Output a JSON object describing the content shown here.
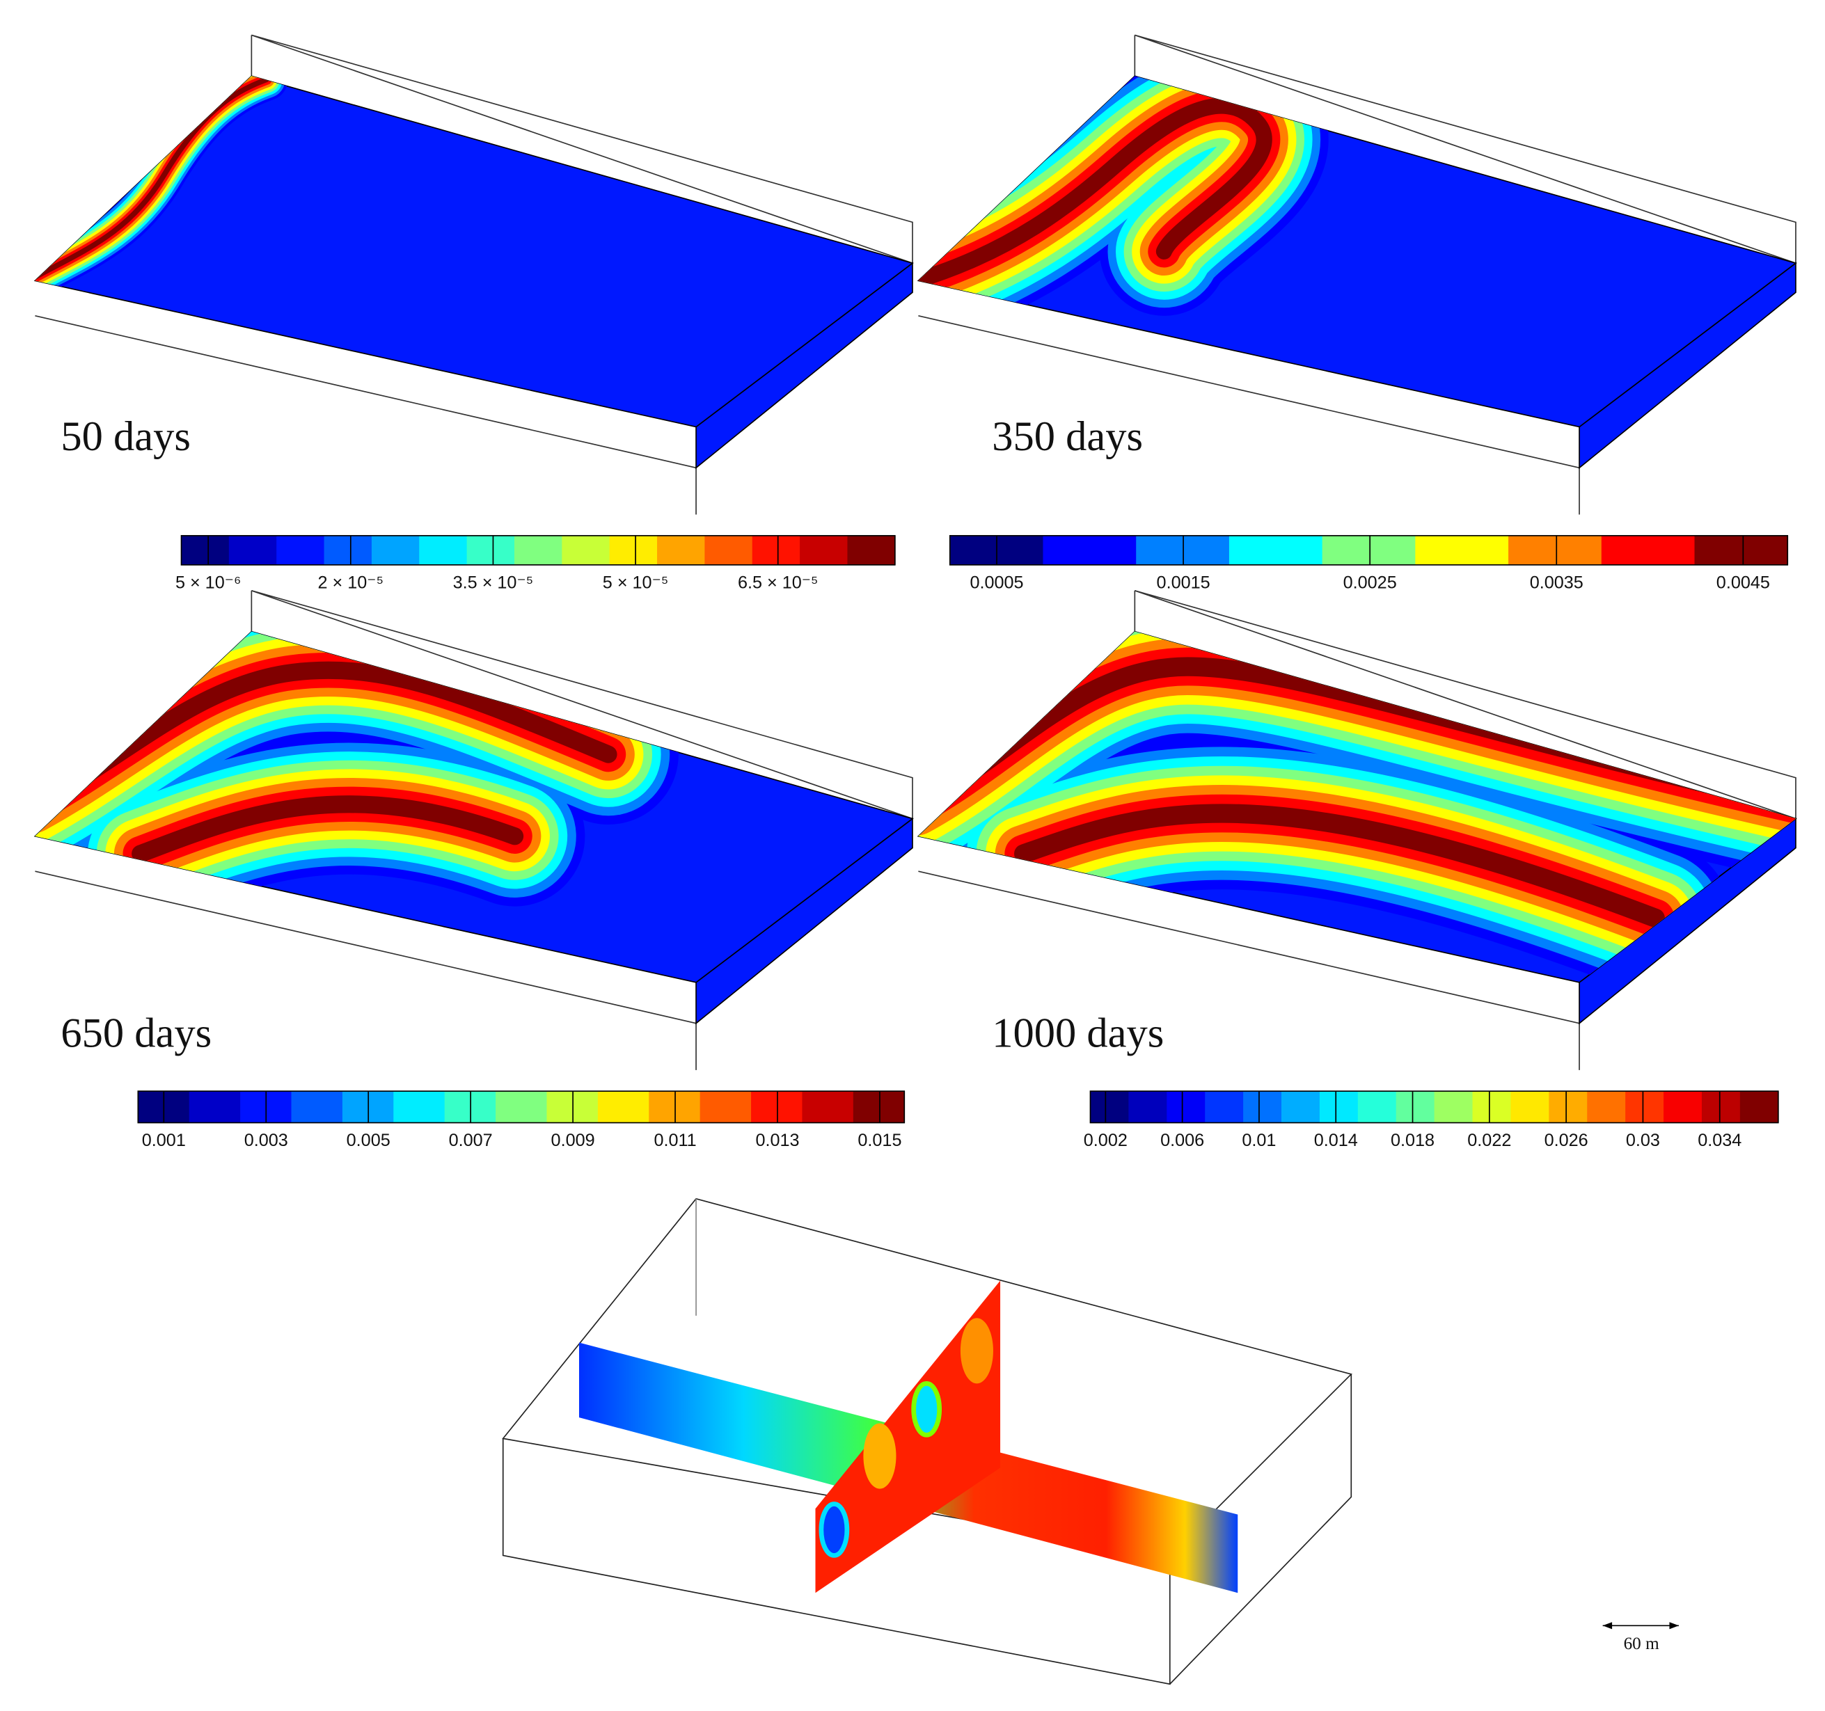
{
  "panels": [
    {
      "label": "50 days",
      "colorbar": [
        "5 × 10⁻⁶",
        "2 × 10⁻⁵",
        "3.5 × 10⁻⁵",
        "5 × 10⁻⁵",
        "6.5 × 10⁻⁵"
      ]
    },
    {
      "label": "350 days",
      "colorbar": [
        "0.0005",
        "0.0015",
        "0.0025",
        "0.0035",
        "0.0045"
      ]
    },
    {
      "label": "650 days",
      "colorbar": [
        "0.001",
        "0.003",
        "0.005",
        "0.007",
        "0.009",
        "0.011",
        "0.013",
        "0.015"
      ]
    },
    {
      "label": "1000 days",
      "colorbar": [
        "0.002",
        "0.006",
        "0.01",
        "0.014",
        "0.018",
        "0.022",
        "0.026",
        "0.03",
        "0.034"
      ]
    }
  ],
  "scale_bar": "60 m"
}
